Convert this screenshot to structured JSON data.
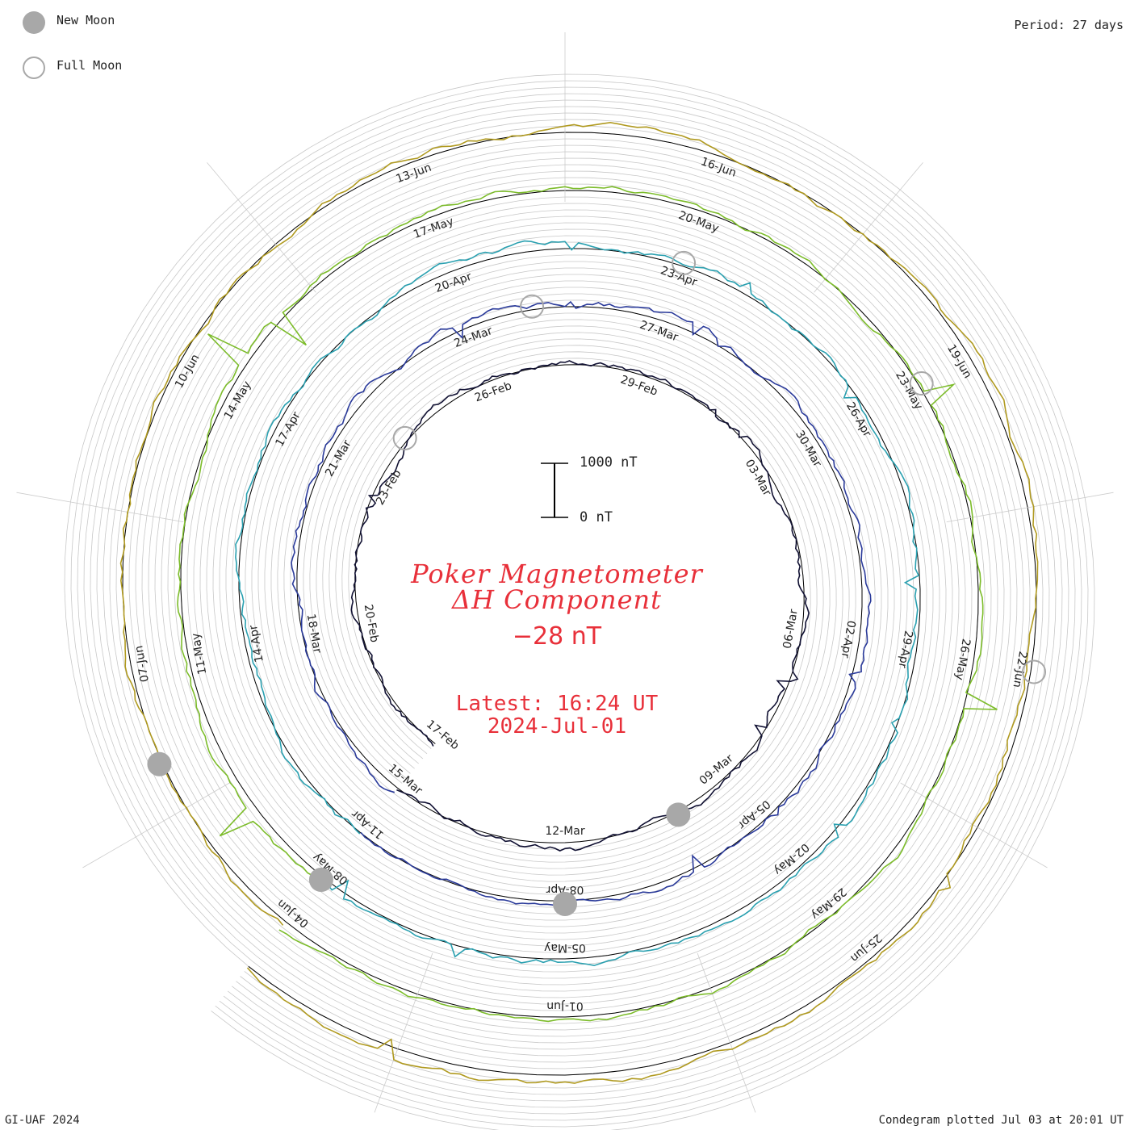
{
  "legend": {
    "new_moon_label": "New Moon",
    "full_moon_label": "Full Moon"
  },
  "period_label": "Period: 27 days",
  "footer": {
    "left": "GI-UAF 2024",
    "right": "Condegram plotted Jul 03 at 20:01 UT"
  },
  "scale": {
    "top_label": "1000 nT",
    "bottom_label": "0 nT"
  },
  "title": {
    "line1": "Poker Magnetometer",
    "line2": "ΔH Component",
    "value": "−28 nT",
    "latest_time": "Latest: 16:24 UT",
    "latest_date": "2024-Jul-01"
  },
  "colors": {
    "title_red": "#e8303a",
    "moon_gray": "#a8a8a8",
    "grid_gray": "#c8c8c8"
  },
  "chart_data": {
    "type": "line",
    "period_days": 27,
    "units": "nT",
    "series": [
      {
        "color": "#111133",
        "start": "2024-02-17",
        "date_labels": [
          "17-Feb",
          "20-Feb",
          "23-Feb",
          "26-Feb",
          "29-Feb",
          "03-Mar",
          "06-Mar",
          "09-Mar",
          "12-Mar"
        ]
      },
      {
        "color": "#2a3a9a",
        "start": "2024-03-15",
        "date_labels": [
          "15-Mar",
          "18-Mar",
          "21-Mar",
          "24-Mar",
          "27-Mar",
          "30-Mar",
          "02-Apr",
          "05-Apr",
          "08-Apr"
        ]
      },
      {
        "color": "#2aa0b0",
        "start": "2024-04-11",
        "date_labels": [
          "11-Apr",
          "14-Apr",
          "17-Apr",
          "20-Apr",
          "23-Apr",
          "26-Apr",
          "29-Apr",
          "02-May",
          "05-May"
        ]
      },
      {
        "color": "#7cbc2a",
        "start": "2024-05-08",
        "date_labels": [
          "08-May",
          "11-May",
          "14-May",
          "17-May",
          "20-May",
          "23-May",
          "26-May",
          "29-May",
          "01-Jun"
        ]
      },
      {
        "color": "#b09a20",
        "start": "2024-06-04",
        "date_labels": [
          "04-Jun",
          "07-Jun",
          "10-Jun",
          "13-Jun",
          "16-Jun",
          "19-Jun",
          "22-Jun",
          "25-Jun"
        ]
      }
    ],
    "new_moons": [
      "2024-03-10",
      "2024-04-08",
      "2024-05-08",
      "2024-06-06"
    ],
    "full_moons": [
      "2024-02-24",
      "2024-03-25",
      "2024-04-23",
      "2024-05-23",
      "2024-06-22"
    ]
  }
}
